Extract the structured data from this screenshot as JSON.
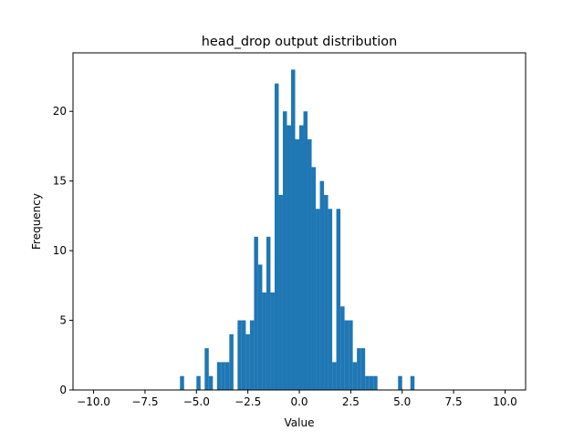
{
  "chart_data": {
    "type": "bar",
    "title": "head_drop output distribution",
    "xlabel": "Value",
    "ylabel": "Frequency",
    "xlim": [
      -11,
      11
    ],
    "ylim": [
      0,
      24.2
    ],
    "bin_width": 0.2,
    "bar_color": "#1f77b4",
    "grid": false,
    "x_ticks": [
      "−10.0",
      "−7.5",
      "−5.0",
      "−2.5",
      "0.0",
      "2.5",
      "5.0",
      "7.5",
      "10.0"
    ],
    "x_tick_values": [
      -10,
      -7.5,
      -5,
      -2.5,
      0,
      2.5,
      5,
      7.5,
      10
    ],
    "y_ticks": [
      "0",
      "5",
      "10",
      "15",
      "20"
    ],
    "y_tick_values": [
      0,
      5,
      10,
      15,
      20
    ],
    "bins": [
      {
        "x": -5.8,
        "count": 1
      },
      {
        "x": -5.0,
        "count": 1
      },
      {
        "x": -4.6,
        "count": 3
      },
      {
        "x": -4.4,
        "count": 1
      },
      {
        "x": -4.0,
        "count": 2
      },
      {
        "x": -3.8,
        "count": 2
      },
      {
        "x": -3.6,
        "count": 2
      },
      {
        "x": -3.4,
        "count": 4
      },
      {
        "x": -3.0,
        "count": 5
      },
      {
        "x": -2.8,
        "count": 5
      },
      {
        "x": -2.6,
        "count": 4
      },
      {
        "x": -2.4,
        "count": 5
      },
      {
        "x": -2.2,
        "count": 11
      },
      {
        "x": -2.0,
        "count": 9
      },
      {
        "x": -1.8,
        "count": 7
      },
      {
        "x": -1.6,
        "count": 11
      },
      {
        "x": -1.4,
        "count": 7
      },
      {
        "x": -1.2,
        "count": 22
      },
      {
        "x": -1.0,
        "count": 14
      },
      {
        "x": -0.8,
        "count": 20
      },
      {
        "x": -0.6,
        "count": 19
      },
      {
        "x": -0.4,
        "count": 23
      },
      {
        "x": -0.2,
        "count": 18
      },
      {
        "x": 0.0,
        "count": 19
      },
      {
        "x": 0.2,
        "count": 20
      },
      {
        "x": 0.4,
        "count": 18
      },
      {
        "x": 0.6,
        "count": 16
      },
      {
        "x": 0.8,
        "count": 13
      },
      {
        "x": 1.0,
        "count": 15
      },
      {
        "x": 1.2,
        "count": 14
      },
      {
        "x": 1.4,
        "count": 13
      },
      {
        "x": 1.6,
        "count": 2
      },
      {
        "x": 1.8,
        "count": 13
      },
      {
        "x": 2.0,
        "count": 6
      },
      {
        "x": 2.2,
        "count": 5
      },
      {
        "x": 2.4,
        "count": 5
      },
      {
        "x": 2.6,
        "count": 2
      },
      {
        "x": 2.8,
        "count": 3
      },
      {
        "x": 3.0,
        "count": 3
      },
      {
        "x": 3.2,
        "count": 1
      },
      {
        "x": 3.4,
        "count": 1
      },
      {
        "x": 3.6,
        "count": 1
      },
      {
        "x": 4.8,
        "count": 1
      },
      {
        "x": 5.4,
        "count": 1
      }
    ]
  }
}
